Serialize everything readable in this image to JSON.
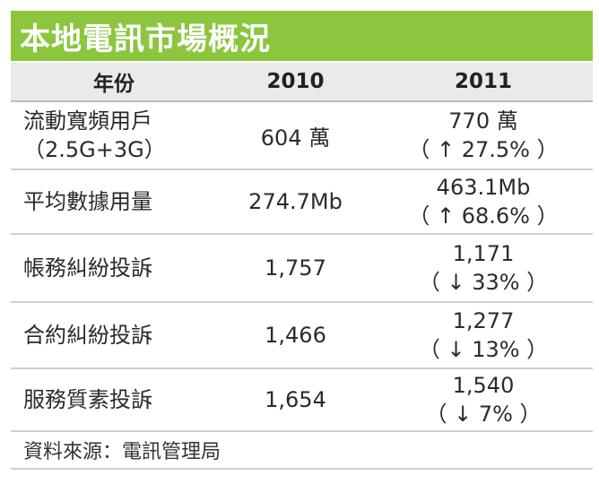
{
  "title": "本地電訊市場概況",
  "header": {
    "col_label": "年份",
    "col_2010": "2010",
    "col_2011": "2011"
  },
  "rows": [
    {
      "label": "流動寬頻用戶",
      "label_sub": "（2.5G+3G）",
      "v2010": "604 萬",
      "v2011": "770 萬",
      "change": "（ ↑ 27.5% ）"
    },
    {
      "label": "平均數據用量",
      "label_sub": "",
      "v2010": "274.7Mb",
      "v2011": "463.1Mb",
      "change": "（ ↑ 68.6% ）"
    },
    {
      "label": "帳務糾紛投訴",
      "label_sub": "",
      "v2010": "1,757",
      "v2011": "1,171",
      "change": "（ ↓ 33% ）"
    },
    {
      "label": "合約糾紛投訴",
      "label_sub": "",
      "v2010": "1,466",
      "v2011": "1,277",
      "change": "（ ↓ 13% ）"
    },
    {
      "label": "服務質素投訴",
      "label_sub": "",
      "v2010": "1,654",
      "v2011": "1,540",
      "change": "（ ↓ 7% ）"
    }
  ],
  "source": "資料來源：電訊管理局",
  "colors": {
    "title_bg": "#8cc63f",
    "header_bg": "#eaeaea"
  }
}
